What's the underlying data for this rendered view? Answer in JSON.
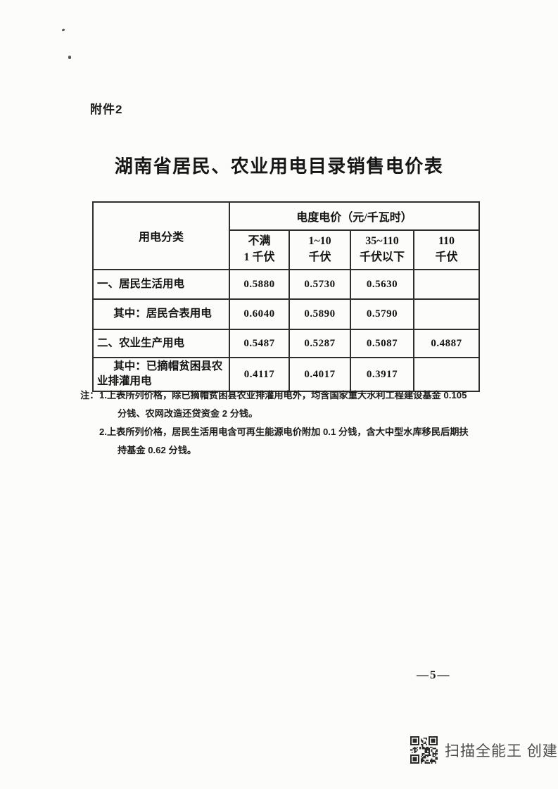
{
  "page": {
    "attachment_label": "附件2",
    "title": "湖南省居民、农业用电目录销售电价表",
    "page_number": "—5—"
  },
  "table": {
    "corner_header": "用电分类",
    "price_header": "电度电价（元/千瓦时）",
    "voltage_headers": [
      {
        "line1": "不满",
        "line2": "1 千伏"
      },
      {
        "line1": "1~10",
        "line2": "千伏"
      },
      {
        "line1": "35~110",
        "line2": "千伏以下"
      },
      {
        "line1": "110",
        "line2": "千伏"
      }
    ],
    "rows": [
      {
        "label": "一、居民生活用电",
        "values": [
          "0.5880",
          "0.5730",
          "0.5630",
          ""
        ]
      },
      {
        "label": "其中：居民合表用电",
        "values": [
          "0.6040",
          "0.5890",
          "0.5790",
          ""
        ]
      },
      {
        "label": "二、农业生产用电",
        "values": [
          "0.5487",
          "0.5287",
          "0.5087",
          "0.4887"
        ]
      },
      {
        "label": "其中：已摘帽贫困县农业排灌用电",
        "values": [
          "0.4117",
          "0.4017",
          "0.3917",
          ""
        ]
      }
    ]
  },
  "notes": {
    "label": "注：",
    "items": [
      {
        "lines": [
          "1.上表所列价格，除已摘帽贫困县农业排灌用电外，均含国家重大水利工程建设基金 0.105",
          "分钱、农网改造还贷资金 2 分钱。"
        ]
      },
      {
        "lines": [
          "2.上表所列价格，居民生活用电含可再生能源电价附加 0.1 分钱，含大中型水库移民后期扶",
          "持基金 0.62 分钱。"
        ]
      }
    ]
  },
  "footer": {
    "scanner_text": "扫描全能王 创建"
  }
}
